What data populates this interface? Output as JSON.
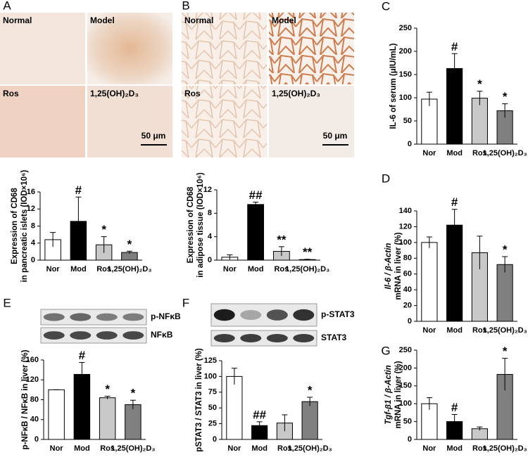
{
  "micrographs": [
    {
      "panel": "A",
      "labels": [
        "Normal",
        "Model",
        "Ros",
        "1,25(OH)₂D₃"
      ],
      "scale": "50 μm"
    },
    {
      "panel": "B",
      "labels": [
        "Normal",
        "Model",
        "Ros",
        "1,25(OH)₂D₃"
      ],
      "scale": "50 μm"
    }
  ],
  "blots": [
    {
      "labels": [
        "p-NFκB",
        "NFκB"
      ]
    },
    {
      "labels": [
        "p-STAT3",
        "STAT3"
      ]
    }
  ],
  "chart_data": [
    {
      "type": "bar",
      "ylabel": [
        "Expression of CD68",
        "in pancreatic islets (IOD×10⁶)"
      ],
      "categories": [
        "Nor",
        "Mod",
        "Ros",
        "1,25(OH)₂D₃"
      ],
      "colors": [
        "#ffffff",
        "#000000",
        "#c8c8c8",
        "#808080"
      ],
      "values": [
        4.8,
        9.1,
        3.6,
        1.8
      ],
      "errors": [
        1.7,
        5.7,
        1.9,
        0.3
      ],
      "annotations": [
        null,
        "#",
        "*",
        "*"
      ],
      "ylim": [
        0,
        16
      ],
      "yticks": [
        0,
        4,
        8,
        12,
        16
      ]
    },
    {
      "type": "bar",
      "ylabel": [
        "Expression of CD68",
        "in adipose tissue (IOD×10⁶)"
      ],
      "categories": [
        "Nor",
        "Mod",
        "Ros",
        "1,25(OH)₂D₃"
      ],
      "colors": [
        "#ffffff",
        "#000000",
        "#c8c8c8",
        "#808080"
      ],
      "values": [
        0.5,
        9.5,
        1.5,
        0.1
      ],
      "errors": [
        0.4,
        0.4,
        0.8,
        0.05
      ],
      "annotations": [
        null,
        "##",
        "**",
        "**"
      ],
      "ylim": [
        0,
        12
      ],
      "yticks": [
        0,
        4,
        8,
        12
      ]
    },
    {
      "type": "bar",
      "panel": "C",
      "ylabel": [
        "IL-6 of serum (μIU/mL)"
      ],
      "categories": [
        "Nor",
        "Mod",
        "Ros",
        "1,25(OH)₂D₃"
      ],
      "colors": [
        "#ffffff",
        "#000000",
        "#c8c8c8",
        "#808080"
      ],
      "values": [
        97,
        163,
        99,
        72
      ],
      "errors": [
        15,
        32,
        15,
        15
      ],
      "annotations": [
        null,
        "#",
        "*",
        "*"
      ],
      "ylim": [
        0,
        250
      ],
      "yticks": [
        0,
        50,
        100,
        150,
        200,
        250
      ]
    },
    {
      "type": "bar",
      "panel": "D",
      "ylabel": [
        "Il-6 / β-Actin",
        "mRNA in liver (%)"
      ],
      "categories": [
        "Nor",
        "Mod",
        "Ros",
        "1,25(OH)₂D₃"
      ],
      "colors": [
        "#ffffff",
        "#000000",
        "#c8c8c8",
        "#808080"
      ],
      "values": [
        100,
        122,
        87,
        72
      ],
      "errors": [
        7,
        20,
        21,
        10
      ],
      "annotations": [
        null,
        "#",
        null,
        "*"
      ],
      "ylim": [
        0,
        140
      ],
      "yticks": [
        0,
        20,
        40,
        60,
        80,
        100,
        120,
        140
      ]
    },
    {
      "type": "bar",
      "panel": "E",
      "ylabel": [
        "p-NFκB / NFκB in liver (%)"
      ],
      "categories": [
        "Nor",
        "Mod",
        "Ros",
        "1,25(OH)₂D₃"
      ],
      "colors": [
        "#ffffff",
        "#000000",
        "#c8c8c8",
        "#808080"
      ],
      "values": [
        100,
        131,
        84,
        70
      ],
      "errors": [
        0,
        24,
        3,
        9
      ],
      "annotations": [
        null,
        "#",
        "*",
        "*"
      ],
      "ylim": [
        0,
        160
      ],
      "yticks": [
        0,
        40,
        80,
        120,
        160
      ]
    },
    {
      "type": "bar",
      "panel": "F",
      "ylabel": [
        "pSTAT3 / STAT3 in liver (%)"
      ],
      "categories": [
        "Nor",
        "Mod",
        "Ros",
        "1,25(OH)₂D₃"
      ],
      "colors": [
        "#ffffff",
        "#000000",
        "#c8c8c8",
        "#808080"
      ],
      "values": [
        100,
        22,
        26,
        60
      ],
      "errors": [
        13,
        6,
        13,
        7
      ],
      "annotations": [
        null,
        "##",
        null,
        "*"
      ],
      "ylim": [
        0,
        125
      ],
      "yticks": [
        0,
        25,
        50,
        75,
        100,
        125
      ]
    },
    {
      "type": "bar",
      "panel": "G",
      "ylabel": [
        "Tgf-β1 / β-Actin",
        "mRNA in liver (%)"
      ],
      "categories": [
        "Nor",
        "Mod",
        "Ros",
        "1,25(OH)₂D₃"
      ],
      "colors": [
        "#ffffff",
        "#000000",
        "#c8c8c8",
        "#808080"
      ],
      "values": [
        100,
        50,
        30,
        182
      ],
      "errors": [
        17,
        20,
        5,
        45
      ],
      "annotations": [
        null,
        "#",
        null,
        "*"
      ],
      "ylim": [
        0,
        250
      ],
      "yticks": [
        0,
        50,
        100,
        150,
        200,
        250
      ]
    }
  ]
}
